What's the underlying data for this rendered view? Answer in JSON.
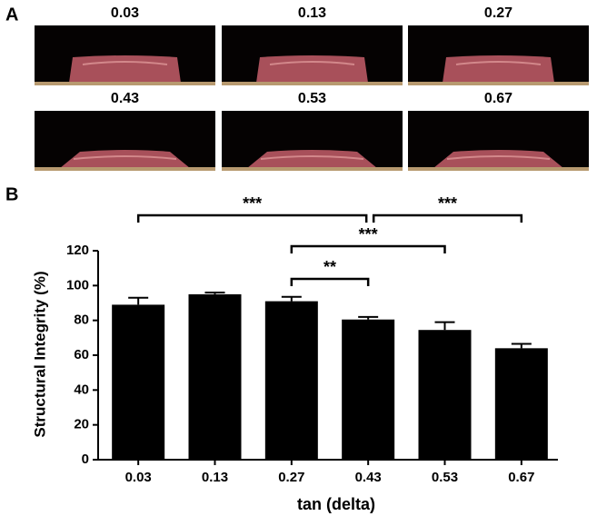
{
  "figure_a": {
    "label": "A",
    "titles": [
      "0.03",
      "0.13",
      "0.27",
      "0.43",
      "0.53",
      "0.67"
    ]
  },
  "chart_data": {
    "type": "bar",
    "panel_label": "B",
    "categories": [
      "0.03",
      "0.13",
      "0.27",
      "0.43",
      "0.53",
      "0.67"
    ],
    "values": [
      89,
      95,
      91,
      80.5,
      74.5,
      64
    ],
    "errors": [
      4,
      1,
      2.5,
      1.5,
      4.5,
      2.5
    ],
    "color": "#000000",
    "ylim": [
      0,
      120
    ],
    "yticks": [
      0,
      20,
      40,
      60,
      80,
      100,
      120
    ],
    "x_label": "tan (delta)",
    "y_label": "Structural Integrity (%)",
    "brackets": [
      {
        "label": "***",
        "from": "0.03",
        "to": "0.43"
      },
      {
        "label": "***",
        "from": "0.43",
        "to": "0.67"
      },
      {
        "label": "***",
        "from": "0.27",
        "to": "0.53"
      },
      {
        "label": "**",
        "from": "0.27",
        "to": "0.43"
      }
    ]
  }
}
